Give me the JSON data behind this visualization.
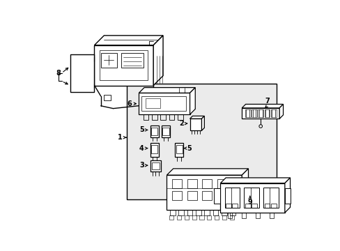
{
  "background_color": "#ffffff",
  "line_color": "#000000",
  "gray_fill": "#e8e8e8",
  "fig_width": 4.89,
  "fig_height": 3.6,
  "dpi": 100
}
